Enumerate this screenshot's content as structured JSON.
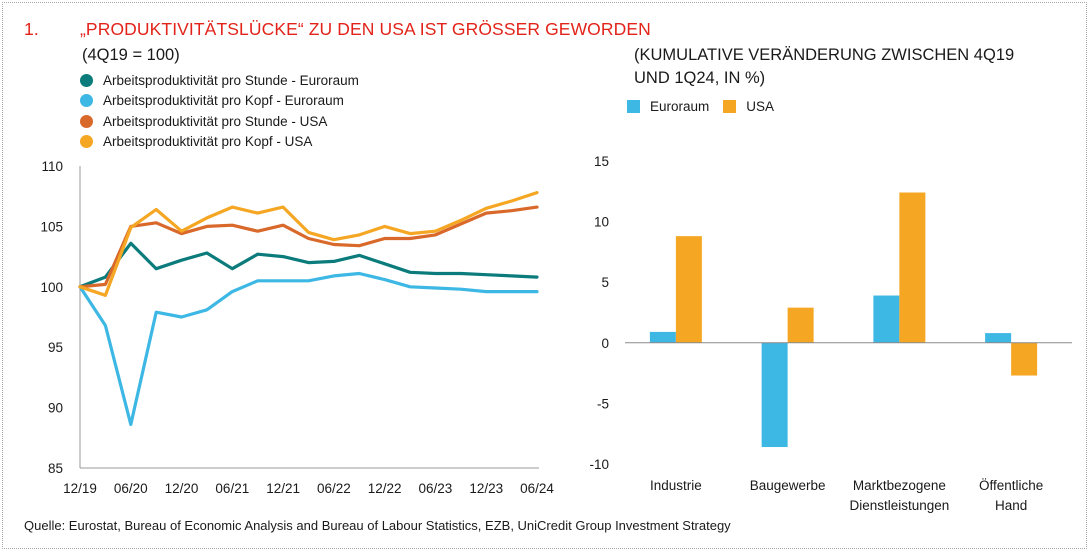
{
  "heading": {
    "number": "1.",
    "title": "„PRODUKTIVITÄTSLÜCKE“ ZU DEN USA IST GRÖSSER GEWORDEN"
  },
  "left_subtitle": "(4Q19 = 100)",
  "right_subtitle_line1": "(KUMULATIVE VERÄNDERUNG ZWISCHEN 4Q19",
  "right_subtitle_line2": "UND 1Q24, IN %)",
  "source": "Quelle: Eurostat, Bureau of Economic Analysis and Bureau of Labour Statistics, EZB, UniCredit Group Investment Strategy",
  "chart_data": [
    {
      "type": "line",
      "title": "„PRODUKTIVITÄTSLÜCKE“ ZU DEN USA IST GRÖSSER GEWORDEN",
      "subtitle": "(4Q19 = 100)",
      "x": [
        "Q4 2019",
        "Q1 2020",
        "Q2 2020",
        "Q3 2020",
        "Q4 2020",
        "Q1 2021",
        "Q2 2021",
        "Q3 2021",
        "Q4 2021",
        "Q1 2022",
        "Q2 2022",
        "Q3 2022",
        "Q4 2022",
        "Q1 2023",
        "Q2 2023",
        "Q3 2023",
        "Q4 2023",
        "Q1 2024",
        "Q2 2024"
      ],
      "x_tick_labels": [
        "12/19",
        "06/20",
        "12/20",
        "06/21",
        "12/21",
        "06/22",
        "12/22",
        "06/23",
        "12/23",
        "06/24"
      ],
      "ylim": [
        85,
        110
      ],
      "y_ticks": [
        "85",
        "90",
        "95",
        "100",
        "105",
        "110"
      ],
      "legend_position": "top-left",
      "series": [
        {
          "name": "Arbeitsproduktivität pro Stunde - Euroraum",
          "color": "#0b7b7c",
          "values": [
            100,
            100.8,
            103.6,
            101.5,
            102.2,
            102.8,
            101.5,
            102.7,
            102.5,
            102.0,
            102.1,
            102.6,
            101.9,
            101.2,
            101.1,
            101.1,
            101.0,
            100.9,
            100.8
          ]
        },
        {
          "name": "Arbeitsproduktivität pro Kopf - Euroraum",
          "color": "#3db7e4",
          "values": [
            100,
            96.8,
            88.6,
            97.9,
            97.5,
            98.1,
            99.6,
            100.5,
            100.5,
            100.5,
            100.9,
            101.1,
            100.6,
            100.0,
            99.9,
            99.8,
            99.6,
            99.6,
            99.6
          ]
        },
        {
          "name": "Arbeitsproduktivität pro Stunde - USA",
          "color": "#d9692a",
          "values": [
            100,
            100.2,
            105.0,
            105.3,
            104.4,
            105.0,
            105.1,
            104.6,
            105.1,
            104.0,
            103.5,
            103.4,
            104.0,
            104.0,
            104.3,
            105.2,
            106.1,
            106.3,
            106.6
          ]
        },
        {
          "name": "Arbeitsproduktivität pro Kopf - USA",
          "color": "#f5a623",
          "values": [
            100,
            99.3,
            104.9,
            106.4,
            104.6,
            105.7,
            106.6,
            106.1,
            106.6,
            104.5,
            103.9,
            104.3,
            105.0,
            104.4,
            104.6,
            105.5,
            106.5,
            107.1,
            107.8
          ]
        }
      ]
    },
    {
      "type": "bar",
      "subtitle": "(KUMULATIVE VERÄNDERUNG ZWISCHEN 4Q19 UND 1Q24, IN %)",
      "categories": [
        {
          "line1": "Industrie",
          "line2": ""
        },
        {
          "line1": "Baugewerbe",
          "line2": ""
        },
        {
          "line1": "Marktbezogene",
          "line2": "Dienstleistungen"
        },
        {
          "line1": "Öffentliche",
          "line2": "Hand"
        }
      ],
      "ylim": [
        -10,
        15
      ],
      "y_ticks": [
        "-10",
        "-5",
        "0",
        "5",
        "10",
        "15"
      ],
      "legend_position": "top-left",
      "series": [
        {
          "name": "Euroraum",
          "color": "#3db7e4",
          "values": [
            0.9,
            -8.6,
            3.9,
            0.8
          ]
        },
        {
          "name": "USA",
          "color": "#f5a623",
          "values": [
            8.8,
            2.9,
            12.4,
            -2.7
          ]
        }
      ]
    }
  ]
}
